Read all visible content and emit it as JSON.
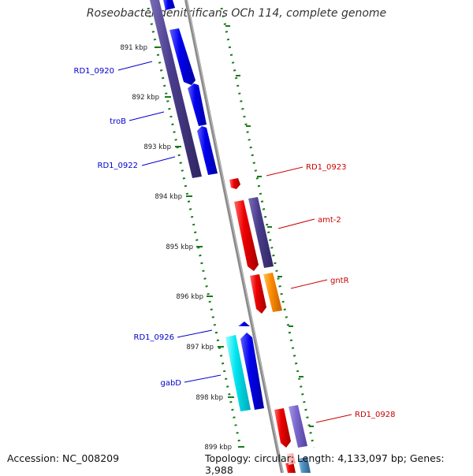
{
  "title": "Roseobacter denitrificans OCh 114, complete genome",
  "footer": {
    "accession": "Accession: NC_008209",
    "info": "Topology: circular; Length: 4,133,097 bp; Genes: 3,988"
  },
  "colors": {
    "label_blue": "#0000cc",
    "label_red": "#cc0000",
    "gene_blue": "#0000ee",
    "gene_navy": "#4a3d8c",
    "gene_red": "#ee0000",
    "gene_orange": "#ff8c00",
    "gene_cyan": "#00e5f0",
    "gene_purple": "#7b68cc",
    "gene_steel": "#4f8fc0",
    "tick_green": "#1a7a1a",
    "backbone": "#808080"
  },
  "ticks": [
    "891 kbp",
    "892 kbp",
    "893 kbp",
    "894 kbp",
    "895 kbp",
    "896 kbp",
    "897 kbp",
    "898 kbp",
    "899 kbp"
  ],
  "gene_labels": [
    {
      "name": "RD1_0920",
      "color": "blue"
    },
    {
      "name": "troB",
      "color": "blue"
    },
    {
      "name": "RD1_0922",
      "color": "blue"
    },
    {
      "name": "RD1_0923",
      "color": "red"
    },
    {
      "name": "amt-2",
      "color": "red"
    },
    {
      "name": "gntR",
      "color": "red"
    },
    {
      "name": "RD1_0926",
      "color": "blue"
    },
    {
      "name": "gabD",
      "color": "blue"
    },
    {
      "name": "RD1_0928",
      "color": "red"
    }
  ]
}
